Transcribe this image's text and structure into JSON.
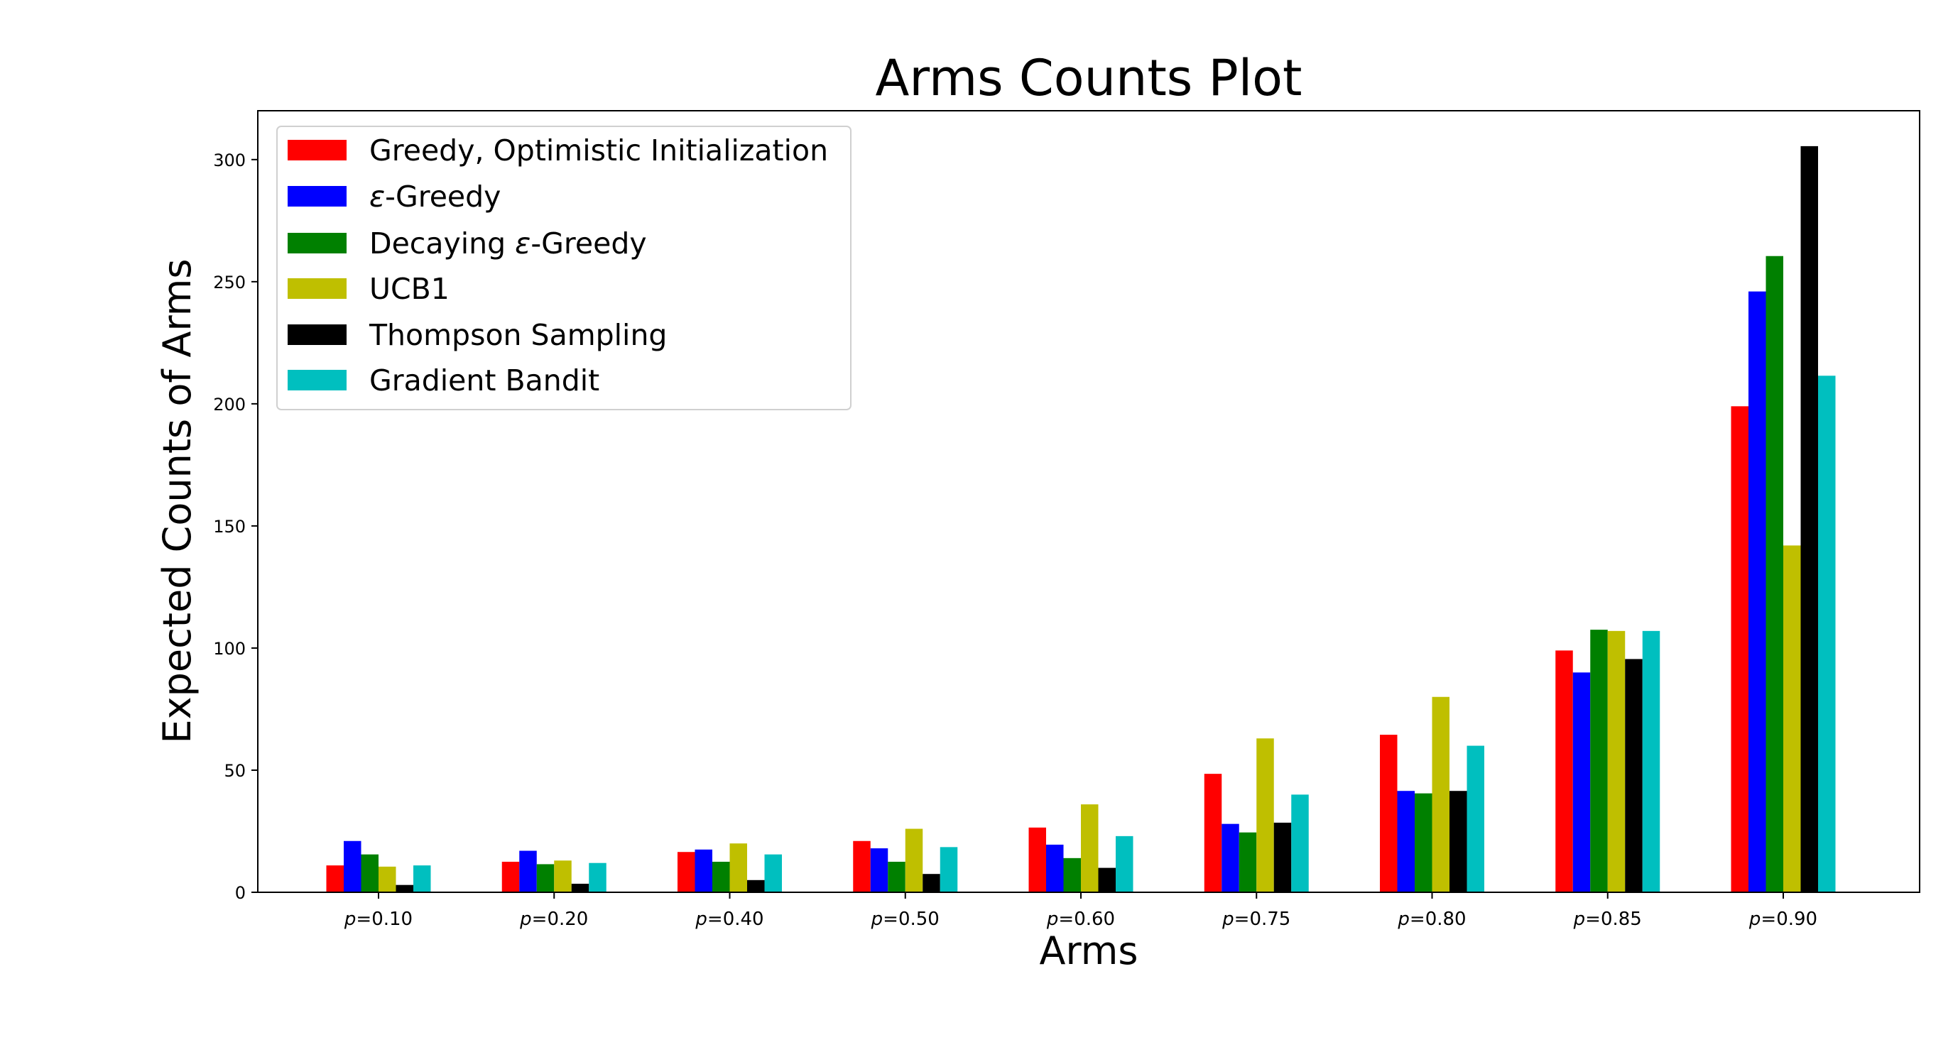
{
  "chart_data": {
    "type": "bar",
    "title": "Arms Counts Plot",
    "xlabel": "Arms",
    "ylabel": "Expected Counts of Arms",
    "ylim": [
      0,
      320
    ],
    "yticks": [
      0,
      50,
      100,
      150,
      200,
      250,
      300
    ],
    "categories": [
      "p=0.10",
      "p=0.20",
      "p=0.40",
      "p=0.50",
      "p=0.60",
      "p=0.75",
      "p=0.80",
      "p=0.85",
      "p=0.90"
    ],
    "category_prefix": "p",
    "category_values": [
      "=0.10",
      "=0.20",
      "=0.40",
      "=0.50",
      "=0.60",
      "=0.75",
      "=0.80",
      "=0.85",
      "=0.90"
    ],
    "legend_position": "upper-left",
    "grid": false,
    "series": [
      {
        "name": "Greedy, Optimistic Initialization",
        "color": "#ff0000",
        "values": [
          11,
          12.5,
          16.5,
          21,
          26.5,
          48.5,
          64.5,
          99,
          199
        ]
      },
      {
        "name": "ε-Greedy",
        "name_symbol": "ε",
        "name_rest": "-Greedy",
        "color": "#0000ff",
        "values": [
          21,
          17,
          17.5,
          18,
          19.5,
          28,
          41.5,
          90,
          246
        ]
      },
      {
        "name": "Decaying ε-Greedy",
        "name_prefix": "Decaying ",
        "name_symbol": "ε",
        "name_rest": "-Greedy",
        "color": "#008000",
        "values": [
          15.5,
          11.5,
          12.5,
          12.5,
          14,
          24.5,
          40.5,
          107.5,
          260.5
        ]
      },
      {
        "name": "UCB1",
        "color": "#bfbf00",
        "values": [
          10.5,
          13,
          20,
          26,
          36,
          63,
          80,
          107,
          142
        ]
      },
      {
        "name": "Thompson Sampling",
        "color": "#000000",
        "values": [
          3,
          3.5,
          5,
          7.5,
          10,
          28.5,
          41.5,
          95.5,
          305.5
        ]
      },
      {
        "name": "Gradient Bandit",
        "color": "#00bfbf",
        "values": [
          11,
          12,
          15.5,
          18.5,
          23,
          40,
          60,
          107,
          211.5
        ]
      }
    ]
  }
}
